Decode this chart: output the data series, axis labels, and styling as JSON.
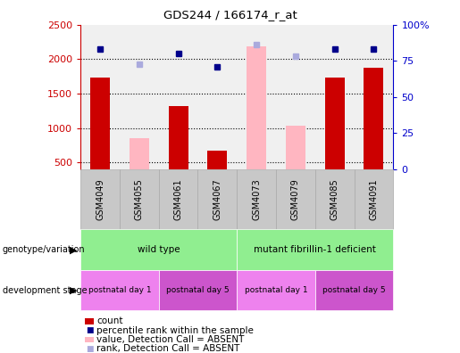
{
  "title": "GDS244 / 166174_r_at",
  "categories": [
    "GSM4049",
    "GSM4055",
    "GSM4061",
    "GSM4067",
    "GSM4073",
    "GSM4079",
    "GSM4085",
    "GSM4091"
  ],
  "count_values": [
    1730,
    null,
    1320,
    670,
    null,
    null,
    1730,
    1880
  ],
  "count_absent_values": [
    null,
    860,
    null,
    null,
    2180,
    1040,
    null,
    null
  ],
  "rank_present": [
    83,
    null,
    80,
    71,
    null,
    null,
    83,
    83
  ],
  "rank_absent": [
    null,
    73,
    null,
    null,
    86,
    78,
    null,
    null
  ],
  "ylim_left": [
    400,
    2500
  ],
  "ylim_right": [
    0,
    100
  ],
  "yticks_left": [
    500,
    1000,
    1500,
    2000,
    2500
  ],
  "yticks_right": [
    0,
    25,
    50,
    75,
    100
  ],
  "ytick_labels_right": [
    "0",
    "25",
    "50",
    "75",
    "100%"
  ],
  "bar_color_present": "#CC0000",
  "bar_color_absent": "#FFB6C1",
  "dot_color_present": "#00008B",
  "dot_color_absent": "#AAAADD",
  "ylabel_left_color": "#CC0000",
  "ylabel_right_color": "#0000CC",
  "plot_bg": "#F0F0F0",
  "bar_width": 0.5,
  "geno_groups": [
    {
      "label": "wild type",
      "start": 0,
      "end": 4,
      "color": "#90EE90"
    },
    {
      "label": "mutant fibrillin-1 deficient",
      "start": 4,
      "end": 8,
      "color": "#90EE90"
    }
  ],
  "dev_groups": [
    {
      "label": "postnatal day 1",
      "start": 0,
      "end": 2,
      "color": "#EE82EE"
    },
    {
      "label": "postnatal day 5",
      "start": 2,
      "end": 4,
      "color": "#CC55CC"
    },
    {
      "label": "postnatal day 1",
      "start": 4,
      "end": 6,
      "color": "#EE82EE"
    },
    {
      "label": "postnatal day 5",
      "start": 6,
      "end": 8,
      "color": "#CC55CC"
    }
  ],
  "legend_items": [
    {
      "label": "count",
      "color": "#CC0000",
      "type": "rect"
    },
    {
      "label": "percentile rank within the sample",
      "color": "#00008B",
      "type": "square"
    },
    {
      "label": "value, Detection Call = ABSENT",
      "color": "#FFB6C1",
      "type": "rect"
    },
    {
      "label": "rank, Detection Call = ABSENT",
      "color": "#AAAADD",
      "type": "square"
    }
  ]
}
